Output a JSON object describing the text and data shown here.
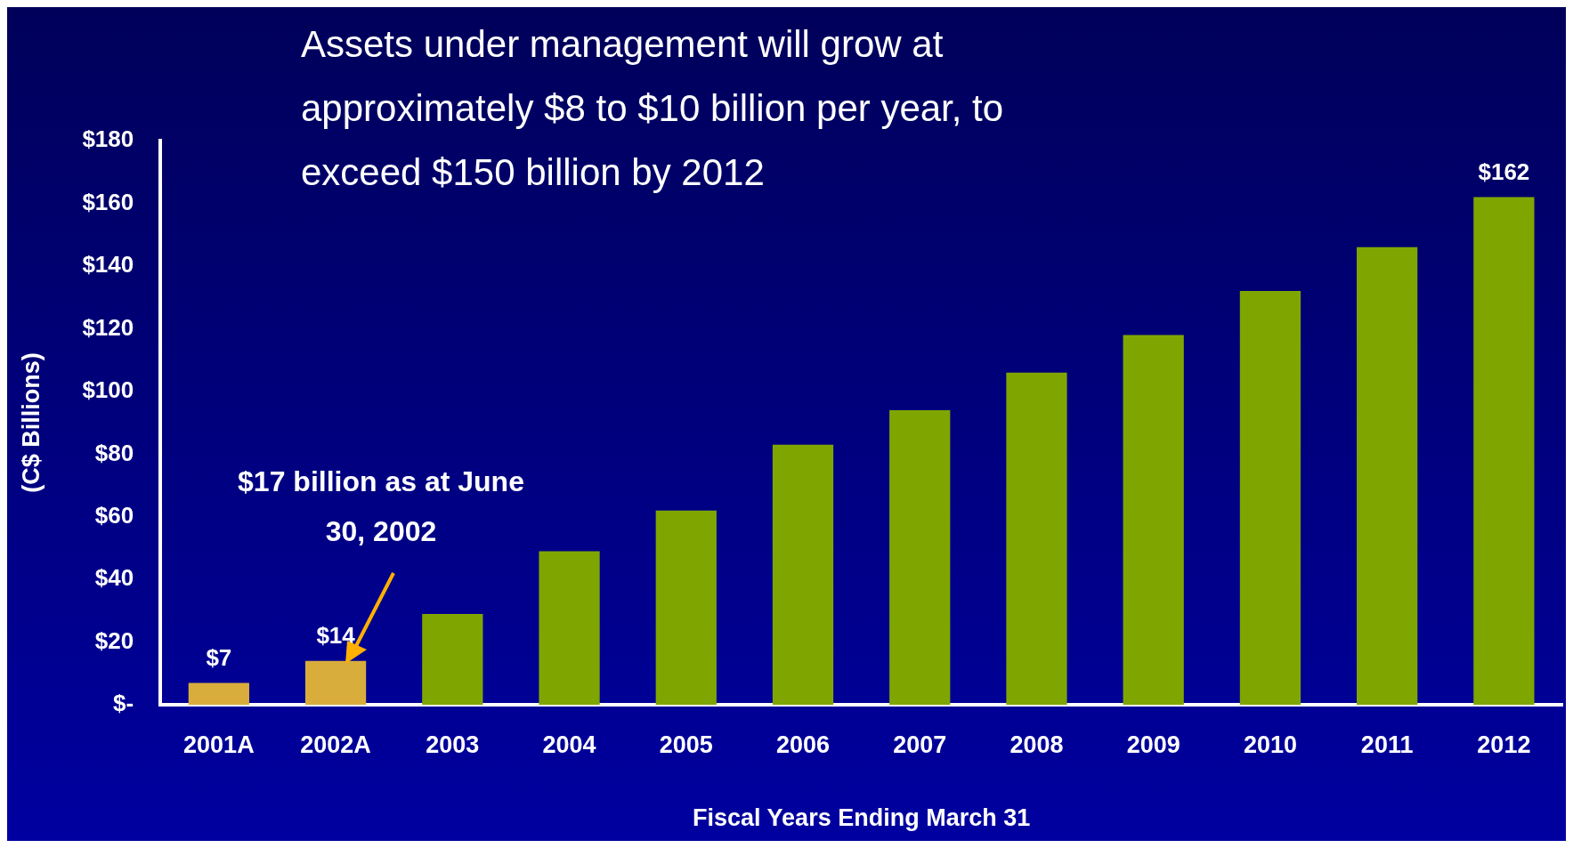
{
  "chart_data": {
    "type": "bar",
    "title": "Assets under management will grow at approximately $8 to $10 billion per year, to exceed $150 billion by 2012",
    "xlabel": "Fiscal Years Ending March 31",
    "ylabel": "(C$ Billions)",
    "categories": [
      "2001A",
      "2002A",
      "2003",
      "2004",
      "2005",
      "2006",
      "2007",
      "2008",
      "2009",
      "2010",
      "2011",
      "2012"
    ],
    "values": [
      7,
      14,
      29,
      49,
      62,
      83,
      94,
      106,
      118,
      132,
      146,
      162
    ],
    "colors": [
      "#d9ad3c",
      "#d9ad3c",
      "#7fa600",
      "#7fa600",
      "#7fa600",
      "#7fa600",
      "#7fa600",
      "#7fa600",
      "#7fa600",
      "#7fa600",
      "#7fa600",
      "#7fa600"
    ],
    "value_labels": [
      "$7",
      "$14",
      null,
      null,
      null,
      null,
      null,
      null,
      null,
      null,
      null,
      "$162"
    ],
    "ylim": [
      0,
      180
    ],
    "yticks": [
      {
        "value": 0,
        "label": "$-"
      },
      {
        "value": 20,
        "label": "$20"
      },
      {
        "value": 40,
        "label": "$40"
      },
      {
        "value": 60,
        "label": "$60"
      },
      {
        "value": 80,
        "label": "$80"
      },
      {
        "value": 100,
        "label": "$100"
      },
      {
        "value": 120,
        "label": "$120"
      },
      {
        "value": 140,
        "label": "$140"
      },
      {
        "value": 160,
        "label": "$160"
      },
      {
        "value": 180,
        "label": "$180"
      }
    ],
    "annotations": [
      "$17 billion as at June 30, 2002"
    ],
    "grid": false,
    "legend": false
  }
}
